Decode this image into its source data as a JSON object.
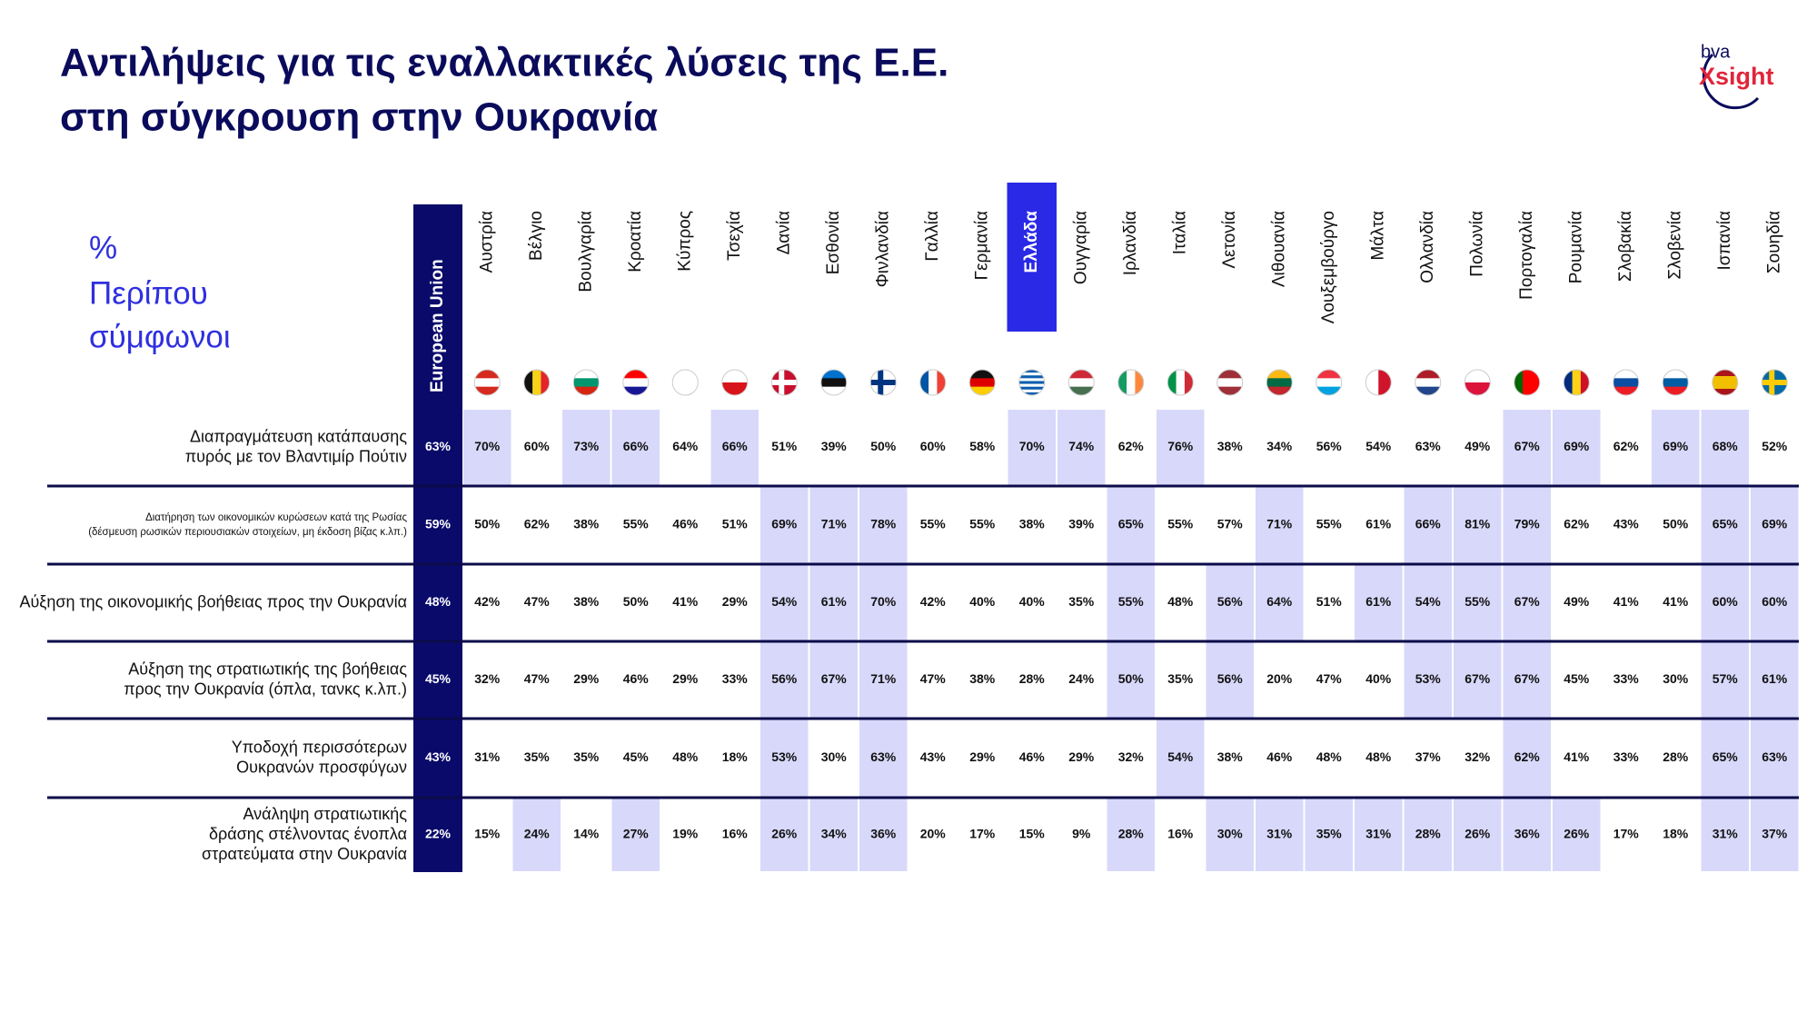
{
  "title": [
    "Αντιλήψεις για τις εναλλακτικές λύσεις της Ε.Ε.",
    "στη σύγκρουση στην Ουκρανία"
  ],
  "logo": {
    "top": "bva",
    "bottom": "Xsight"
  },
  "unit_label": [
    "%",
    "Περίπου",
    "σύμφωνοι"
  ],
  "table": {
    "eu_header": "European Union",
    "columns": [
      "Αυστρία",
      "Βέλγιο",
      "Βουλγαρία",
      "Κροατία",
      "Κύπρος",
      "Τσεχία",
      "Δανία",
      "Εσθονία",
      "Φινλανδία",
      "Γαλλία",
      "Γερμανία",
      "Ελλάδα",
      "Ουγγαρία",
      "Ιρλανδία",
      "Ιταλία",
      "Λετονία",
      "Λιθουανία",
      "Λουξεμβούργο",
      "Μάλτα",
      "Ολλανδία",
      "Πολωνία",
      "Πορτογαλία",
      "Ρουμανία",
      "Σλοβακία",
      "Σλοβενία",
      "Ισπανία",
      "Σουηδία"
    ],
    "highlighted_column": 11,
    "rows": [
      {
        "label": [
          "Διαπραγμάτευση κατάπαυσης",
          "πυρός με τον Βλαντιμίρ Πούτιν"
        ],
        "eu": "63%",
        "values": [
          "70%",
          "60%",
          "73%",
          "66%",
          "64%",
          "66%",
          "51%",
          "39%",
          "50%",
          "60%",
          "58%",
          "70%",
          "74%",
          "62%",
          "76%",
          "38%",
          "34%",
          "56%",
          "54%",
          "63%",
          "49%",
          "67%",
          "69%",
          "62%",
          "69%",
          "68%",
          "52%"
        ],
        "highlight": [
          0,
          2,
          3,
          5,
          11,
          12,
          14,
          21,
          22,
          24,
          25
        ]
      },
      {
        "label": [
          "Διατήρηση των οικονομικών κυρώσεων κατά της Ρωσίας",
          "(δέσμευση ρωσικών περιουσιακών στοιχείων, μη έκδοση βίζας κ.λπ.)"
        ],
        "eu": "59%",
        "values": [
          "50%",
          "62%",
          "38%",
          "55%",
          "46%",
          "51%",
          "69%",
          "71%",
          "78%",
          "55%",
          "55%",
          "38%",
          "39%",
          "65%",
          "55%",
          "57%",
          "71%",
          "55%",
          "61%",
          "66%",
          "81%",
          "79%",
          "62%",
          "43%",
          "50%",
          "65%",
          "69%"
        ],
        "highlight": [
          6,
          7,
          8,
          13,
          16,
          19,
          20,
          21,
          25,
          26
        ]
      },
      {
        "label": [
          "Αύξηση της οικονομικής βοήθειας προς την Ουκρανία"
        ],
        "eu": "48%",
        "values": [
          "42%",
          "47%",
          "38%",
          "50%",
          "41%",
          "29%",
          "54%",
          "61%",
          "70%",
          "42%",
          "40%",
          "40%",
          "35%",
          "55%",
          "48%",
          "56%",
          "64%",
          "51%",
          "61%",
          "54%",
          "55%",
          "67%",
          "49%",
          "41%",
          "41%",
          "60%",
          "60%"
        ],
        "highlight": [
          6,
          7,
          8,
          13,
          15,
          16,
          18,
          19,
          20,
          21,
          25,
          26
        ]
      },
      {
        "label": [
          "Αύξηση της στρατιωτικής της βοήθειας",
          "προς την Ουκρανία (όπλα, τανκς κ.λπ.)"
        ],
        "eu": "45%",
        "values": [
          "32%",
          "47%",
          "29%",
          "46%",
          "29%",
          "33%",
          "56%",
          "67%",
          "71%",
          "47%",
          "38%",
          "28%",
          "24%",
          "50%",
          "35%",
          "56%",
          "20%",
          "47%",
          "40%",
          "53%",
          "67%",
          "67%",
          "45%",
          "33%",
          "30%",
          "57%",
          "61%"
        ],
        "highlight": [
          6,
          7,
          8,
          13,
          15,
          19,
          20,
          21,
          25,
          26
        ]
      },
      {
        "label": [
          "Υποδοχή περισσότερων",
          "Ουκρανών προσφύγων"
        ],
        "eu": "43%",
        "values": [
          "31%",
          "35%",
          "35%",
          "45%",
          "48%",
          "18%",
          "53%",
          "30%",
          "63%",
          "43%",
          "29%",
          "46%",
          "29%",
          "32%",
          "54%",
          "38%",
          "46%",
          "48%",
          "48%",
          "37%",
          "32%",
          "62%",
          "41%",
          "33%",
          "28%",
          "65%",
          "63%"
        ],
        "highlight": [
          6,
          8,
          14,
          21,
          25,
          26
        ]
      },
      {
        "label": [
          "Ανάληψη στρατιωτικής",
          "δράσης στέλνοντας ένοπλα",
          "στρατεύματα στην Ουκρανία"
        ],
        "eu": "22%",
        "values": [
          "15%",
          "24%",
          "14%",
          "27%",
          "19%",
          "16%",
          "26%",
          "34%",
          "36%",
          "20%",
          "17%",
          "15%",
          "9%",
          "28%",
          "16%",
          "30%",
          "31%",
          "35%",
          "31%",
          "28%",
          "26%",
          "36%",
          "26%",
          "17%",
          "18%",
          "31%",
          "37%"
        ],
        "highlight": [
          1,
          3,
          6,
          7,
          8,
          13,
          15,
          16,
          17,
          18,
          19,
          20,
          21,
          22,
          25,
          26
        ]
      }
    ]
  }
}
